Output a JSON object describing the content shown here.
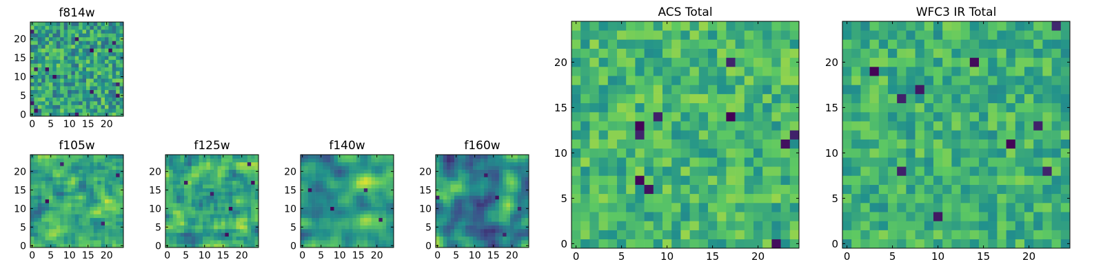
{
  "figure": {
    "background": "#ffffff"
  },
  "colormap": {
    "name": "viridis",
    "stops": [
      "#440154",
      "#3b528b",
      "#21918c",
      "#5ec962",
      "#fde725"
    ]
  },
  "chart_data": [
    {
      "id": "f814w",
      "type": "heatmap",
      "title": "f814w",
      "grid_size": 25,
      "xlim": [
        0,
        24
      ],
      "ylim": [
        0,
        24
      ],
      "xticks": [
        0,
        5,
        10,
        15,
        20
      ],
      "yticks": [
        0,
        5,
        10,
        15,
        20
      ],
      "tick_labels_x": [
        "0",
        "5",
        "10",
        "15",
        "20"
      ],
      "tick_labels_y": [
        "0",
        "5",
        "10",
        "15",
        "20"
      ],
      "seed": 814,
      "smooth": 0,
      "center": 0.58,
      "spread": 0.24,
      "dark_spots": 14,
      "values": []
    },
    {
      "id": "f105w",
      "type": "heatmap",
      "title": "f105w",
      "grid_size": 25,
      "xlim": [
        0,
        24
      ],
      "ylim": [
        0,
        24
      ],
      "xticks": [
        0,
        5,
        10,
        15,
        20
      ],
      "yticks": [
        0,
        5,
        10,
        15,
        20
      ],
      "tick_labels_x": [
        "0",
        "5",
        "10",
        "15",
        "20"
      ],
      "tick_labels_y": [
        "0",
        "5",
        "10",
        "15",
        "20"
      ],
      "seed": 105,
      "smooth": 1,
      "center": 0.62,
      "spread": 0.3,
      "dark_spots": 4,
      "values": []
    },
    {
      "id": "f125w",
      "type": "heatmap",
      "title": "f125w",
      "grid_size": 25,
      "xlim": [
        0,
        24
      ],
      "ylim": [
        0,
        24
      ],
      "xticks": [
        0,
        5,
        10,
        15,
        20
      ],
      "yticks": [
        0,
        5,
        10,
        15,
        20
      ],
      "tick_labels_x": [
        "0",
        "5",
        "10",
        "15",
        "20"
      ],
      "tick_labels_y": [
        "0",
        "5",
        "10",
        "15",
        "20"
      ],
      "seed": 125,
      "smooth": 1,
      "center": 0.6,
      "spread": 0.3,
      "dark_spots": 6,
      "values": []
    },
    {
      "id": "f140w",
      "type": "heatmap",
      "title": "f140w",
      "grid_size": 25,
      "xlim": [
        0,
        24
      ],
      "ylim": [
        0,
        24
      ],
      "xticks": [
        0,
        5,
        10,
        15,
        20
      ],
      "yticks": [
        0,
        5,
        10,
        15,
        20
      ],
      "tick_labels_x": [
        "0",
        "5",
        "10",
        "15",
        "20"
      ],
      "tick_labels_y": [
        "0",
        "5",
        "10",
        "15",
        "20"
      ],
      "seed": 140,
      "smooth": 2,
      "center": 0.6,
      "spread": 0.34,
      "dark_spots": 4,
      "values": []
    },
    {
      "id": "f160w",
      "type": "heatmap",
      "title": "f160w",
      "grid_size": 25,
      "xlim": [
        0,
        24
      ],
      "ylim": [
        0,
        24
      ],
      "xticks": [
        0,
        5,
        10,
        15,
        20
      ],
      "yticks": [
        0,
        5,
        10,
        15,
        20
      ],
      "tick_labels_x": [
        "0",
        "5",
        "10",
        "15",
        "20"
      ],
      "tick_labels_y": [
        "0",
        "5",
        "10",
        "15",
        "20"
      ],
      "seed": 160,
      "smooth": 2,
      "center": 0.5,
      "spread": 0.36,
      "dark_spots": 5,
      "values": []
    },
    {
      "id": "acs-total",
      "type": "heatmap",
      "title": "ACS Total",
      "grid_size": 25,
      "xlim": [
        0,
        24
      ],
      "ylim": [
        0,
        24
      ],
      "xticks": [
        0,
        5,
        10,
        15,
        20
      ],
      "yticks": [
        0,
        5,
        10,
        15,
        20
      ],
      "tick_labels_x": [
        "0",
        "5",
        "10",
        "15",
        "20"
      ],
      "tick_labels_y": [
        "0",
        "5",
        "10",
        "15",
        "20"
      ],
      "seed": 1001,
      "smooth": 0,
      "center": 0.66,
      "spread": 0.18,
      "dark_spots": 10,
      "values": []
    },
    {
      "id": "wfc3-ir-total",
      "type": "heatmap",
      "title": "WFC3 IR Total",
      "grid_size": 25,
      "xlim": [
        0,
        24
      ],
      "ylim": [
        0,
        24
      ],
      "xticks": [
        0,
        5,
        10,
        15,
        20
      ],
      "yticks": [
        0,
        5,
        10,
        15,
        20
      ],
      "tick_labels_x": [
        "0",
        "5",
        "10",
        "15",
        "20"
      ],
      "tick_labels_y": [
        "0",
        "5",
        "10",
        "15",
        "20"
      ],
      "seed": 2002,
      "smooth": 0,
      "center": 0.64,
      "spread": 0.17,
      "dark_spots": 10,
      "values": []
    }
  ]
}
